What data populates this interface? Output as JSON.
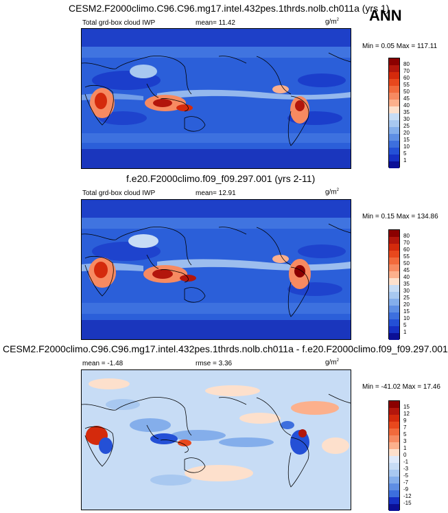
{
  "season": "ANN",
  "panels": [
    {
      "title": "CESM2.F2000climo.C96.C96.mg17.intel.432pes.1thrds.nolb.ch011a (yrs 1)",
      "var_label": "Total grd-box cloud IWP",
      "mean_label": "mean=  11.42",
      "units": "g/m",
      "units_sup": "2",
      "minmax": "Min =  0.05 Max = 117.11"
    },
    {
      "title": "f.e20.F2000climo.f09_f09.297.001 (yrs 2-11)",
      "var_label": "Total grd-box cloud IWP",
      "mean_label": "mean=  12.91",
      "units": "g/m",
      "units_sup": "2",
      "minmax": "Min =  0.15 Max = 134.86"
    },
    {
      "title": "CESM2.F2000climo.C96.C96.mg17.intel.432pes.1thrds.nolb.ch011a - f.e20.F2000climo.f09_f09.297.001",
      "mean_label": "mean =  -1.48",
      "rmse_label": "rmse =   3.36",
      "units": "g/m",
      "units_sup": "2",
      "minmax": "Min = -41.02 Max =  17.46"
    }
  ],
  "colorbars": {
    "abs": {
      "labels": [
        "80",
        "70",
        "60",
        "55",
        "50",
        "45",
        "40",
        "35",
        "30",
        "25",
        "20",
        "15",
        "10",
        "5",
        "1"
      ],
      "colors": [
        "#8b0000",
        "#b3160c",
        "#d42a0c",
        "#e8481d",
        "#f26a3c",
        "#f78a61",
        "#fcb08c",
        "#fde0cc",
        "#c7dcf5",
        "#a8c8f0",
        "#84aeeb",
        "#5e8ee4",
        "#3d6fde",
        "#2450d6",
        "#1630c4",
        "#0b0f96"
      ]
    },
    "diff": {
      "labels": [
        "15",
        "12",
        "9",
        "7",
        "5",
        "3",
        "1",
        "0",
        "-1",
        "-3",
        "-5",
        "-7",
        "-9",
        "-12",
        "-15"
      ],
      "colors": [
        "#8b0000",
        "#b3160c",
        "#d42a0c",
        "#e8481d",
        "#f26a3c",
        "#f78a61",
        "#fcb08c",
        "#fde0cc",
        "#dfeafb",
        "#c7dcf5",
        "#a8c8f0",
        "#84aeeb",
        "#5e8ee4",
        "#3d6fde",
        "#1630c4",
        "#0b0f96"
      ]
    }
  },
  "chart_data": [
    {
      "type": "heatmap",
      "title": "CESM2.F2000climo.C96.C96.mg17.intel.432pes.1thrds.nolb.ch011a (yrs 1)",
      "variable": "Total grd-box cloud IWP",
      "units": "g/m2",
      "mean": 11.42,
      "min": 0.05,
      "max": 117.11,
      "contour_levels": [
        1,
        5,
        10,
        15,
        20,
        25,
        30,
        35,
        40,
        45,
        50,
        55,
        60,
        70,
        80
      ]
    },
    {
      "type": "heatmap",
      "title": "f.e20.F2000climo.f09_f09.297.001 (yrs 2-11)",
      "variable": "Total grd-box cloud IWP",
      "units": "g/m2",
      "mean": 12.91,
      "min": 0.15,
      "max": 134.86,
      "contour_levels": [
        1,
        5,
        10,
        15,
        20,
        25,
        30,
        35,
        40,
        45,
        50,
        55,
        60,
        70,
        80
      ]
    },
    {
      "type": "heatmap",
      "title": "CESM2.F2000climo.C96.C96.mg17.intel.432pes.1thrds.nolb.ch011a - f.e20.F2000climo.f09_f09.297.001",
      "units": "g/m2",
      "mean": -1.48,
      "rmse": 3.36,
      "min": -41.02,
      "max": 17.46,
      "contour_levels": [
        -15,
        -12,
        -9,
        -7,
        -5,
        -3,
        -1,
        0,
        1,
        3,
        5,
        7,
        9,
        12,
        15
      ]
    }
  ]
}
